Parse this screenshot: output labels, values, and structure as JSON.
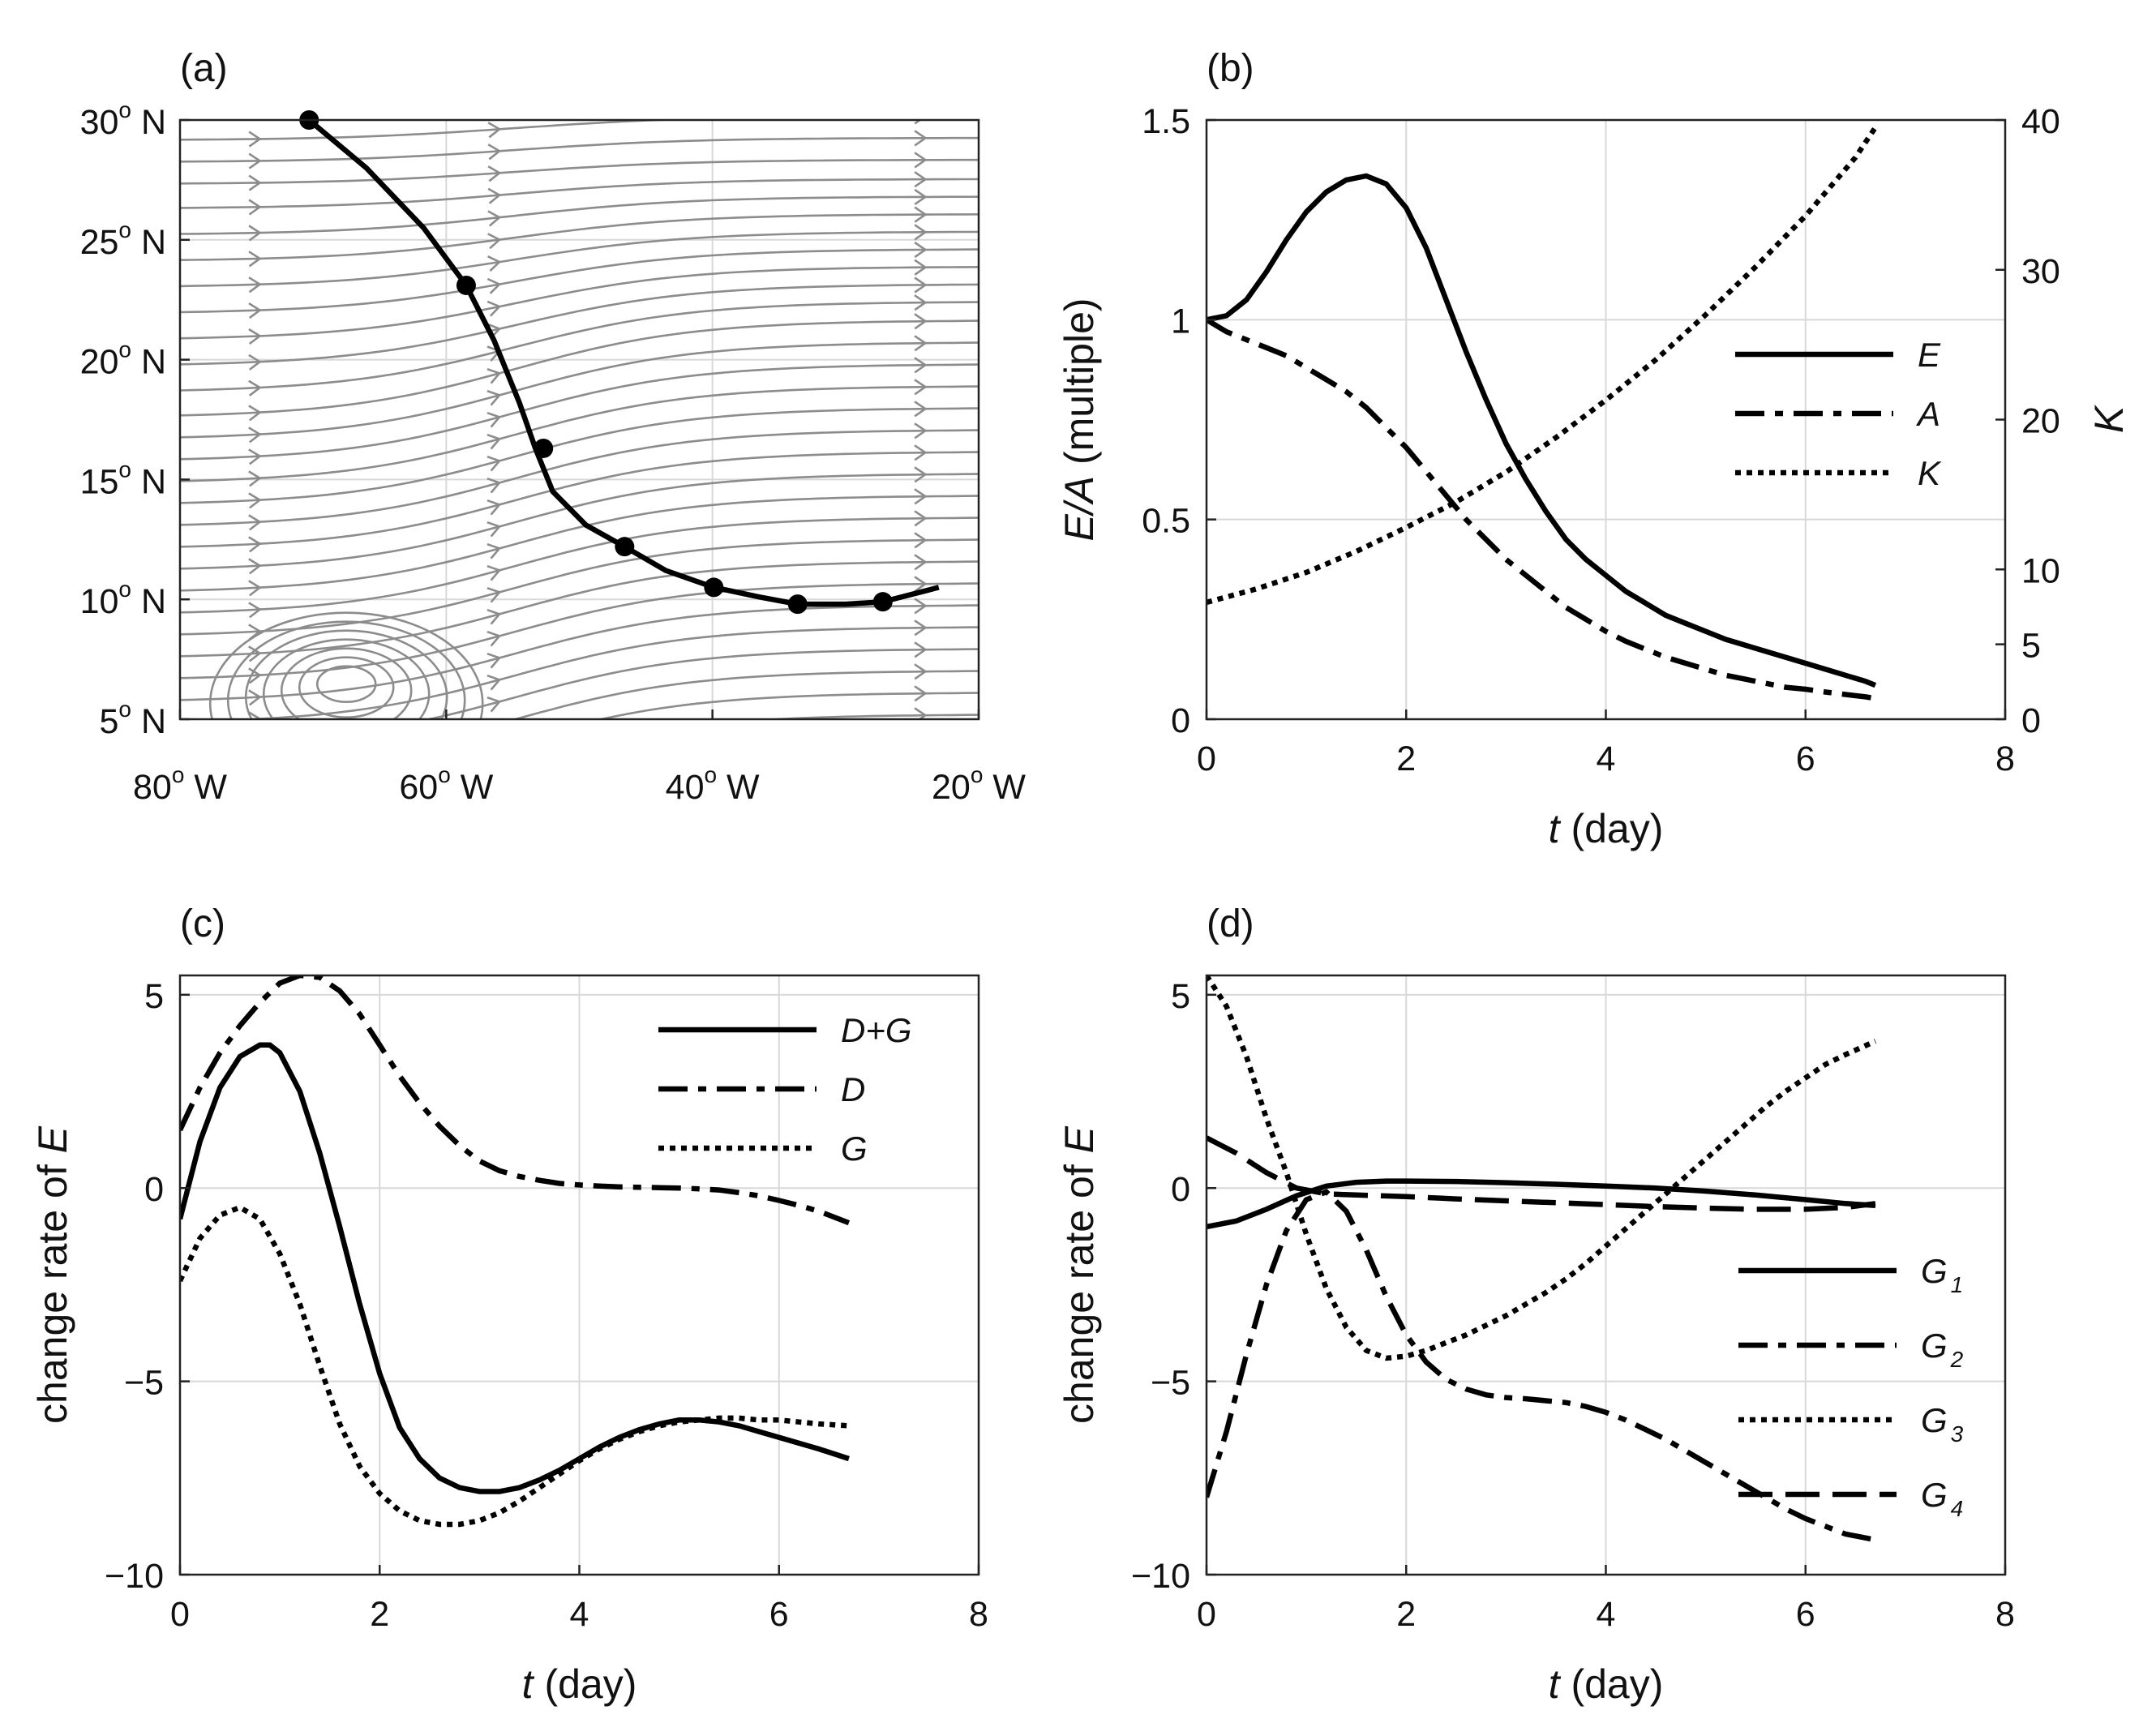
{
  "chart_data": [
    {
      "panel_label": "(a)",
      "type": "map",
      "x_ticks": [
        {
          "value": -80,
          "deg": "80",
          "suffix": " W"
        },
        {
          "value": -60,
          "deg": "60",
          "suffix": " W"
        },
        {
          "value": -40,
          "deg": "40",
          "suffix": " W"
        },
        {
          "value": -20,
          "deg": "20",
          "suffix": " W"
        }
      ],
      "y_ticks": [
        {
          "value": 5,
          "deg": "5",
          "suffix": " N"
        },
        {
          "value": 10,
          "deg": "10",
          "suffix": " N"
        },
        {
          "value": 15,
          "deg": "15",
          "suffix": " N"
        },
        {
          "value": 20,
          "deg": "20",
          "suffix": " N"
        },
        {
          "value": 25,
          "deg": "25",
          "suffix": " N"
        },
        {
          "value": 30,
          "deg": "30",
          "suffix": " N"
        }
      ],
      "degree_symbol": "o",
      "xlim": [
        -80,
        -20
      ],
      "ylim": [
        5,
        30
      ],
      "grid": true,
      "streamline_color": "#8c8c8c",
      "track": {
        "lon": [
          -70.3,
          -66,
          -61.7,
          -58.5,
          -56.4,
          -54.5,
          -53.3,
          -52,
          -49.5,
          -46.6,
          -43.5,
          -39.9,
          -36.5,
          -33.6,
          -30,
          -27.2,
          -23
        ],
        "lat": [
          30.0,
          28.0,
          25.5,
          23.1,
          20.8,
          18.2,
          16.3,
          14.5,
          13.1,
          12.2,
          11.2,
          10.5,
          10.1,
          9.8,
          9.8,
          9.9,
          10.5
        ]
      },
      "track_points": {
        "lon": [
          -70.3,
          -58.5,
          -52.7,
          -46.6,
          -39.9,
          -33.6,
          -27.2
        ],
        "lat": [
          30.0,
          23.1,
          16.3,
          12.2,
          10.5,
          9.8,
          9.9
        ]
      }
    },
    {
      "panel_label": "(b)",
      "type": "line",
      "xlabel_var": "t",
      "xlabel_unit": "(day)",
      "ylabel_var": "E/A",
      "ylabel_unit": "(multiple)",
      "y2label": "K",
      "xlim": [
        0,
        8
      ],
      "ylim": [
        0,
        1.5
      ],
      "y2lim": [
        0,
        40
      ],
      "x_ticks": [
        0,
        2,
        4,
        6,
        8
      ],
      "y_ticks": [
        0,
        0.5,
        1,
        1.5
      ],
      "y_tick_labels": [
        "0",
        "0.5",
        "1",
        "1.5"
      ],
      "y2_ticks": [
        0,
        5,
        10,
        20,
        30,
        40
      ],
      "grid": true,
      "legend_position": "center-right",
      "series": [
        {
          "name": "E",
          "style": "solid",
          "axis": "left",
          "x": [
            0,
            0.2,
            0.4,
            0.6,
            0.8,
            1.0,
            1.2,
            1.4,
            1.6,
            1.8,
            2.0,
            2.2,
            2.4,
            2.6,
            2.8,
            3.0,
            3.2,
            3.4,
            3.6,
            3.8,
            4.0,
            4.2,
            4.4,
            4.6,
            4.8,
            5.0,
            5.2,
            5.4,
            5.6,
            5.8,
            6.0,
            6.2,
            6.4,
            6.6,
            6.7
          ],
          "y": [
            1.0,
            1.01,
            1.05,
            1.12,
            1.2,
            1.27,
            1.32,
            1.35,
            1.36,
            1.34,
            1.28,
            1.18,
            1.05,
            0.92,
            0.8,
            0.69,
            0.6,
            0.52,
            0.45,
            0.4,
            0.36,
            0.32,
            0.29,
            0.26,
            0.24,
            0.22,
            0.2,
            0.185,
            0.17,
            0.155,
            0.14,
            0.125,
            0.11,
            0.095,
            0.085
          ]
        },
        {
          "name": "A",
          "style": "dashdot",
          "axis": "left",
          "x": [
            0,
            0.2,
            0.4,
            0.6,
            0.8,
            1.0,
            1.2,
            1.4,
            1.6,
            1.8,
            2.0,
            2.2,
            2.4,
            2.6,
            2.8,
            3.0,
            3.2,
            3.4,
            3.6,
            3.8,
            4.0,
            4.2,
            4.4,
            4.6,
            4.8,
            5.0,
            5.2,
            5.4,
            5.6,
            5.8,
            6.0,
            6.2,
            6.4,
            6.6,
            6.7
          ],
          "y": [
            1.0,
            0.97,
            0.95,
            0.93,
            0.91,
            0.88,
            0.85,
            0.82,
            0.78,
            0.73,
            0.68,
            0.62,
            0.56,
            0.5,
            0.45,
            0.4,
            0.36,
            0.32,
            0.28,
            0.25,
            0.22,
            0.195,
            0.175,
            0.155,
            0.14,
            0.125,
            0.11,
            0.1,
            0.09,
            0.08,
            0.075,
            0.068,
            0.062,
            0.056,
            0.052
          ]
        },
        {
          "name": "K",
          "style": "dotted",
          "axis": "right",
          "x": [
            0,
            0.5,
            1.0,
            1.5,
            2.0,
            2.5,
            3.0,
            3.5,
            4.0,
            4.5,
            5.0,
            5.5,
            6.0,
            6.5,
            6.7
          ],
          "y": [
            7.8,
            8.7,
            9.8,
            11.2,
            12.8,
            14.5,
            16.5,
            18.8,
            21.3,
            24.0,
            27.0,
            30.2,
            33.6,
            37.5,
            39.5
          ]
        }
      ]
    },
    {
      "panel_label": "(c)",
      "type": "line",
      "xlabel_var": "t",
      "xlabel_unit": "(day)",
      "ylabel_text": "change rate of ",
      "ylabel_var": "E",
      "xlim": [
        0,
        8
      ],
      "ylim": [
        -10,
        5.5
      ],
      "x_ticks": [
        0,
        2,
        4,
        6,
        8
      ],
      "y_ticks": [
        -10,
        -5,
        0,
        5
      ],
      "y_tick_labels": [
        "−10",
        "−5",
        "0",
        "5"
      ],
      "grid": true,
      "legend_position": "top-right",
      "series": [
        {
          "name": "D+G",
          "style": "solid",
          "x": [
            0,
            0.2,
            0.4,
            0.6,
            0.8,
            0.9,
            1.0,
            1.2,
            1.4,
            1.6,
            1.8,
            2.0,
            2.2,
            2.4,
            2.6,
            2.8,
            3.0,
            3.2,
            3.4,
            3.6,
            3.8,
            4.0,
            4.2,
            4.4,
            4.6,
            4.8,
            5.0,
            5.2,
            5.4,
            5.6,
            5.8,
            6.0,
            6.2,
            6.4,
            6.7
          ],
          "y": [
            -0.8,
            1.2,
            2.6,
            3.4,
            3.7,
            3.7,
            3.5,
            2.5,
            0.9,
            -1.0,
            -3.0,
            -4.8,
            -6.2,
            -7.0,
            -7.5,
            -7.75,
            -7.85,
            -7.85,
            -7.75,
            -7.55,
            -7.3,
            -7.0,
            -6.7,
            -6.45,
            -6.25,
            -6.1,
            -6.0,
            -6.0,
            -6.05,
            -6.15,
            -6.3,
            -6.45,
            -6.6,
            -6.75,
            -7.0
          ]
        },
        {
          "name": "D",
          "style": "dashdot",
          "x": [
            0,
            0.2,
            0.4,
            0.6,
            0.8,
            1.0,
            1.2,
            1.4,
            1.6,
            1.8,
            2.0,
            2.2,
            2.4,
            2.6,
            2.8,
            3.0,
            3.2,
            3.4,
            3.6,
            3.8,
            4.0,
            4.2,
            4.4,
            4.6,
            4.8,
            5.0,
            5.2,
            5.4,
            5.6,
            5.8,
            6.0,
            6.2,
            6.4,
            6.7
          ],
          "y": [
            1.5,
            2.6,
            3.5,
            4.2,
            4.8,
            5.3,
            5.5,
            5.45,
            5.1,
            4.5,
            3.7,
            2.9,
            2.2,
            1.6,
            1.1,
            0.7,
            0.45,
            0.3,
            0.2,
            0.12,
            0.08,
            0.05,
            0.03,
            0.02,
            0.01,
            0.0,
            -0.02,
            -0.05,
            -0.12,
            -0.2,
            -0.32,
            -0.45,
            -0.6,
            -0.9
          ]
        },
        {
          "name": "G",
          "style": "dotted",
          "x": [
            0,
            0.2,
            0.4,
            0.6,
            0.8,
            1.0,
            1.2,
            1.4,
            1.6,
            1.8,
            2.0,
            2.2,
            2.4,
            2.6,
            2.8,
            3.0,
            3.2,
            3.4,
            3.6,
            3.8,
            4.0,
            4.2,
            4.4,
            4.6,
            4.8,
            5.0,
            5.2,
            5.4,
            5.6,
            5.8,
            6.0,
            6.2,
            6.4,
            6.7
          ],
          "y": [
            -2.4,
            -1.3,
            -0.7,
            -0.5,
            -0.8,
            -1.7,
            -3.0,
            -4.6,
            -6.1,
            -7.2,
            -7.9,
            -8.35,
            -8.6,
            -8.7,
            -8.7,
            -8.6,
            -8.4,
            -8.1,
            -7.75,
            -7.4,
            -7.05,
            -6.75,
            -6.5,
            -6.3,
            -6.15,
            -6.05,
            -6.0,
            -5.95,
            -5.95,
            -6.0,
            -6.0,
            -6.05,
            -6.1,
            -6.15
          ]
        }
      ]
    },
    {
      "panel_label": "(d)",
      "type": "line",
      "xlabel_var": "t",
      "xlabel_unit": "(day)",
      "ylabel_text": "change rate of ",
      "ylabel_var": "E",
      "xlim": [
        0,
        8
      ],
      "ylim": [
        -10,
        5.5
      ],
      "x_ticks": [
        0,
        2,
        4,
        6,
        8
      ],
      "y_ticks": [
        -10,
        -5,
        0,
        5
      ],
      "y_tick_labels": [
        "−10",
        "−5",
        "0",
        "5"
      ],
      "grid": true,
      "legend_position": "bottom-right",
      "series": [
        {
          "name": "G",
          "subscript": "1",
          "style": "solid",
          "x": [
            0,
            0.3,
            0.6,
            0.9,
            1.2,
            1.5,
            1.8,
            2.0,
            2.5,
            3.0,
            3.5,
            4.0,
            4.5,
            5.0,
            5.5,
            6.0,
            6.4,
            6.7
          ],
          "y": [
            -1.0,
            -0.85,
            -0.55,
            -0.2,
            0.05,
            0.15,
            0.18,
            0.18,
            0.17,
            0.14,
            0.1,
            0.05,
            0.0,
            -0.08,
            -0.18,
            -0.3,
            -0.4,
            -0.45
          ]
        },
        {
          "name": "G",
          "subscript": "2",
          "style": "dashdot",
          "x": [
            0,
            0.2,
            0.4,
            0.6,
            0.8,
            1.0,
            1.2,
            1.4,
            1.6,
            1.8,
            2.0,
            2.2,
            2.4,
            2.6,
            2.8,
            3.0,
            3.2,
            3.4,
            3.6,
            3.8,
            4.0,
            4.2,
            4.4,
            4.6,
            4.8,
            5.0,
            5.2,
            5.4,
            5.6,
            5.8,
            6.0,
            6.2,
            6.4,
            6.7
          ],
          "y": [
            -8.0,
            -6.3,
            -4.3,
            -2.5,
            -1.1,
            -0.3,
            -0.1,
            -0.6,
            -1.6,
            -2.8,
            -3.8,
            -4.5,
            -4.95,
            -5.2,
            -5.35,
            -5.42,
            -5.45,
            -5.5,
            -5.55,
            -5.65,
            -5.8,
            -6.0,
            -6.25,
            -6.5,
            -6.8,
            -7.1,
            -7.4,
            -7.7,
            -8.0,
            -8.3,
            -8.55,
            -8.75,
            -8.95,
            -9.1
          ]
        },
        {
          "name": "G",
          "subscript": "3",
          "style": "dotted",
          "x": [
            0,
            0.2,
            0.4,
            0.6,
            0.8,
            1.0,
            1.2,
            1.4,
            1.6,
            1.8,
            2.0,
            2.2,
            2.4,
            2.6,
            2.8,
            3.0,
            3.2,
            3.4,
            3.6,
            3.8,
            4.0,
            4.2,
            4.4,
            4.6,
            4.8,
            5.0,
            5.2,
            5.4,
            5.6,
            5.8,
            6.0,
            6.2,
            6.4,
            6.7
          ],
          "y": [
            5.5,
            4.7,
            3.4,
            1.8,
            0.4,
            -1.2,
            -2.6,
            -3.6,
            -4.2,
            -4.4,
            -4.35,
            -4.2,
            -4.0,
            -3.8,
            -3.55,
            -3.3,
            -3.0,
            -2.7,
            -2.35,
            -1.95,
            -1.5,
            -1.05,
            -0.6,
            -0.15,
            0.3,
            0.75,
            1.2,
            1.65,
            2.1,
            2.5,
            2.85,
            3.2,
            3.45,
            3.8
          ]
        },
        {
          "name": "G",
          "subscript": "4",
          "style": "dashed",
          "x": [
            0,
            0.3,
            0.6,
            0.9,
            1.2,
            1.5,
            2.0,
            2.5,
            3.0,
            3.5,
            4.0,
            4.5,
            5.0,
            5.5,
            6.0,
            6.4,
            6.7
          ],
          "y": [
            1.3,
            0.9,
            0.4,
            0.0,
            -0.15,
            -0.18,
            -0.22,
            -0.28,
            -0.33,
            -0.38,
            -0.43,
            -0.48,
            -0.52,
            -0.55,
            -0.55,
            -0.5,
            -0.4
          ]
        }
      ]
    }
  ]
}
